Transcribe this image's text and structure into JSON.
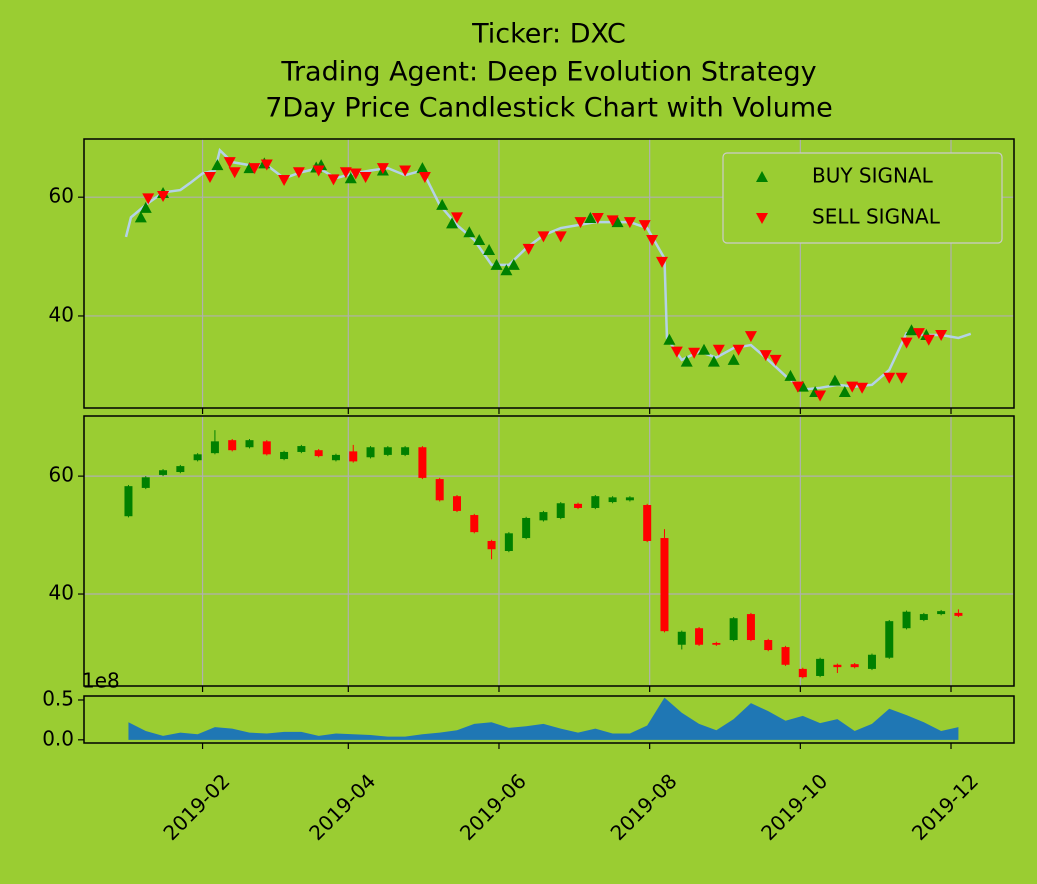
{
  "chart_data": [
    {
      "type": "line",
      "title": "Ticker: DXC",
      "subtitle": "Trading Agent: Deep Evolution Strategy",
      "subtitle2": "7Day Price Candlestick Chart with Volume",
      "xlim": [
        -17,
        359.5
      ],
      "ylim": [
        24.5,
        69.8
      ],
      "yticks": [
        40,
        60
      ],
      "grid": true,
      "legend": "upper right",
      "xticks": [
        {
          "value": 31,
          "label": "2019-02"
        },
        {
          "value": 90,
          "label": "2019-04"
        },
        {
          "value": 151,
          "label": "2019-06"
        },
        {
          "value": 212,
          "label": "2019-08"
        },
        {
          "value": 273,
          "label": "2019-10"
        },
        {
          "value": 334,
          "label": "2019-12"
        }
      ],
      "series": [
        {
          "color": "#b4d2e7",
          "x": [
            0,
            2,
            8,
            15,
            22,
            26,
            31,
            36,
            38,
            43,
            50,
            57,
            64,
            71,
            78,
            85,
            92,
            99,
            106,
            113,
            120,
            127,
            134,
            141,
            148,
            155,
            162,
            169,
            176,
            183,
            190,
            197,
            204,
            211,
            218,
            219,
            225,
            232,
            239,
            246,
            253,
            260,
            267,
            274,
            281,
            288,
            295,
            302,
            309,
            316,
            323,
            330,
            337,
            342
          ],
          "values": [
            53.3,
            56.6,
            58.7,
            60.8,
            61.2,
            62.4,
            64.0,
            64.5,
            67.9,
            65.9,
            65.4,
            65.4,
            63.2,
            64.2,
            64.9,
            63.2,
            64.0,
            64.5,
            64.9,
            63.7,
            64.5,
            58.7,
            55.3,
            52.8,
            48.6,
            48.6,
            51.4,
            53.6,
            54.8,
            55.3,
            55.8,
            55.8,
            55.8,
            54.8,
            49.7,
            36.3,
            32.6,
            34.0,
            33.0,
            34.6,
            35.1,
            32.6,
            29.9,
            27.6,
            27.9,
            28.4,
            28.1,
            28.4,
            30.9,
            37.1,
            36.8,
            36.8,
            36.3,
            37.0
          ]
        },
        {
          "name": "BUY SIGNAL",
          "color": "green",
          "marker": "triangle-up",
          "x": [
            6,
            8,
            15,
            37,
            50,
            56,
            77,
            79,
            91,
            104,
            120,
            128,
            132,
            139,
            143,
            147,
            150,
            154,
            157,
            188,
            199,
            220,
            227,
            234,
            238,
            246,
            269,
            274,
            279,
            287,
            291,
            318,
            324
          ],
          "values": [
            56.6,
            58.2,
            60.7,
            65.4,
            64.9,
            65.7,
            65.0,
            65.4,
            63.2,
            64.5,
            64.9,
            58.7,
            55.6,
            54.1,
            52.8,
            51.1,
            48.6,
            47.7,
            48.6,
            56.5,
            55.8,
            36.0,
            32.3,
            34.3,
            32.3,
            32.6,
            29.9,
            28.1,
            27.2,
            29.1,
            27.2,
            37.6,
            36.8
          ]
        },
        {
          "name": "SELL SIGNAL",
          "color": "red",
          "marker": "triangle-down",
          "x": [
            9,
            15,
            34,
            42,
            44,
            52,
            57,
            64,
            70,
            78,
            84,
            89,
            93,
            97,
            104,
            113,
            121,
            134,
            163,
            169,
            176,
            184,
            191,
            197,
            204,
            210,
            213,
            217,
            223,
            230,
            240,
            248,
            253,
            259,
            263,
            272,
            281,
            294,
            298,
            309,
            314,
            316,
            321,
            325,
            330
          ],
          "values": [
            59.8,
            60.2,
            63.4,
            65.9,
            64.2,
            64.9,
            65.5,
            62.9,
            64.2,
            64.5,
            63.0,
            64.2,
            64.0,
            63.4,
            64.9,
            64.5,
            63.4,
            56.6,
            51.3,
            53.4,
            53.4,
            55.8,
            56.5,
            56.1,
            55.8,
            55.3,
            52.8,
            49.1,
            34.0,
            33.8,
            34.3,
            34.3,
            36.6,
            33.4,
            32.6,
            28.1,
            26.6,
            28.1,
            27.9,
            29.6,
            29.6,
            35.5,
            37.1,
            36.0,
            36.8
          ]
        }
      ]
    },
    {
      "type": "candlestick",
      "xlim": [
        -17,
        359.5
      ],
      "ylim": [
        24.4,
        70.2
      ],
      "yticks": [
        40,
        60
      ],
      "grid": true,
      "up_color": "green",
      "down_color": "red",
      "xticks": [
        {
          "value": 31,
          "label": "2019-02"
        },
        {
          "value": 90,
          "label": "2019-04"
        },
        {
          "value": 151,
          "label": "2019-06"
        },
        {
          "value": 212,
          "label": "2019-08"
        },
        {
          "value": 273,
          "label": "2019-10"
        },
        {
          "value": 334,
          "label": "2019-12"
        }
      ],
      "x": [
        1,
        8,
        15,
        22,
        29,
        36,
        43,
        50,
        57,
        64,
        71,
        78,
        85,
        92,
        99,
        106,
        113,
        120,
        127,
        134,
        141,
        148,
        155,
        162,
        169,
        176,
        183,
        190,
        197,
        204,
        211,
        218,
        225,
        232,
        239,
        246,
        253,
        260,
        267,
        274,
        281,
        288,
        295,
        302,
        309,
        316,
        323,
        330,
        337
      ],
      "open": [
        53.2,
        58.0,
        60.2,
        60.7,
        62.7,
        63.9,
        66.1,
        64.9,
        65.9,
        62.9,
        64.1,
        64.4,
        62.7,
        64.2,
        63.2,
        63.6,
        63.6,
        64.9,
        59.5,
        56.6,
        53.4,
        49.0,
        47.3,
        49.5,
        52.5,
        52.9,
        55.3,
        54.6,
        55.6,
        55.9,
        55.1,
        49.5,
        31.4,
        34.2,
        31.7,
        32.2,
        36.6,
        32.2,
        31.0,
        27.3,
        26.1,
        28.0,
        28.1,
        27.3,
        29.2,
        34.2,
        35.6,
        36.6,
        36.8
      ],
      "close": [
        58.3,
        59.8,
        61.0,
        61.7,
        63.7,
        65.9,
        64.4,
        66.1,
        63.7,
        64.1,
        65.1,
        63.4,
        63.6,
        62.5,
        64.9,
        64.9,
        64.9,
        59.7,
        55.9,
        54.1,
        50.5,
        47.6,
        50.3,
        52.9,
        53.9,
        55.4,
        54.6,
        56.6,
        56.4,
        56.4,
        49.0,
        33.7,
        33.6,
        31.4,
        31.4,
        35.9,
        32.2,
        30.5,
        28.0,
        25.9,
        29.0,
        27.6,
        27.6,
        29.7,
        35.4,
        37.0,
        36.6,
        37.1,
        36.3
      ],
      "high": [
        58.5,
        60.0,
        61.2,
        61.9,
        63.9,
        67.8,
        66.3,
        66.3,
        66.1,
        64.3,
        65.3,
        64.6,
        63.8,
        65.3,
        65.1,
        65.1,
        65.1,
        65.1,
        59.7,
        56.8,
        53.6,
        49.2,
        50.5,
        53.1,
        54.1,
        55.6,
        55.5,
        56.8,
        56.6,
        56.6,
        55.3,
        51.0,
        33.8,
        34.4,
        31.9,
        36.1,
        36.8,
        32.4,
        31.2,
        27.5,
        29.2,
        28.2,
        28.3,
        29.9,
        35.6,
        37.2,
        36.8,
        37.3,
        37.4
      ],
      "low": [
        53.0,
        57.8,
        60.0,
        60.5,
        62.5,
        63.7,
        64.2,
        64.7,
        63.5,
        62.7,
        63.9,
        63.2,
        62.5,
        62.3,
        63.0,
        63.4,
        63.4,
        59.5,
        55.7,
        53.9,
        50.3,
        45.9,
        47.1,
        49.3,
        52.3,
        52.7,
        54.4,
        54.4,
        55.4,
        55.7,
        48.8,
        33.5,
        30.6,
        31.2,
        31.2,
        32.0,
        32.0,
        30.3,
        27.8,
        25.7,
        25.9,
        26.6,
        27.4,
        27.1,
        29.0,
        34.0,
        35.4,
        36.4,
        36.1
      ]
    },
    {
      "type": "area",
      "xlim": [
        -17,
        359.5
      ],
      "ylim": [
        -0.04,
        0.55
      ],
      "offset_text": "1e8",
      "color": "#1f77b4",
      "yticks": [
        {
          "value": 0,
          "label": "0.0"
        },
        0.5
      ],
      "xticks": [
        {
          "value": 31,
          "label": "2019-02"
        },
        {
          "value": 90,
          "label": "2019-04"
        },
        {
          "value": 151,
          "label": "2019-06"
        },
        {
          "value": 212,
          "label": "2019-08"
        },
        {
          "value": 273,
          "label": "2019-10"
        },
        {
          "value": 334,
          "label": "2019-12"
        }
      ],
      "x": [
        1,
        8,
        15,
        22,
        29,
        36,
        43,
        50,
        57,
        64,
        71,
        78,
        85,
        92,
        99,
        106,
        113,
        120,
        127,
        134,
        141,
        148,
        155,
        162,
        169,
        176,
        183,
        190,
        197,
        204,
        211,
        218,
        225,
        232,
        239,
        246,
        253,
        260,
        267,
        274,
        281,
        288,
        295,
        302,
        309,
        316,
        323,
        330,
        337
      ],
      "values": [
        0.22,
        0.11,
        0.05,
        0.09,
        0.07,
        0.16,
        0.14,
        0.09,
        0.08,
        0.1,
        0.1,
        0.05,
        0.08,
        0.07,
        0.06,
        0.04,
        0.04,
        0.07,
        0.09,
        0.12,
        0.2,
        0.22,
        0.15,
        0.17,
        0.2,
        0.14,
        0.09,
        0.14,
        0.08,
        0.08,
        0.18,
        0.53,
        0.34,
        0.2,
        0.12,
        0.26,
        0.46,
        0.36,
        0.24,
        0.3,
        0.21,
        0.26,
        0.11,
        0.2,
        0.39,
        0.31,
        0.22,
        0.11,
        0.16
      ]
    }
  ]
}
